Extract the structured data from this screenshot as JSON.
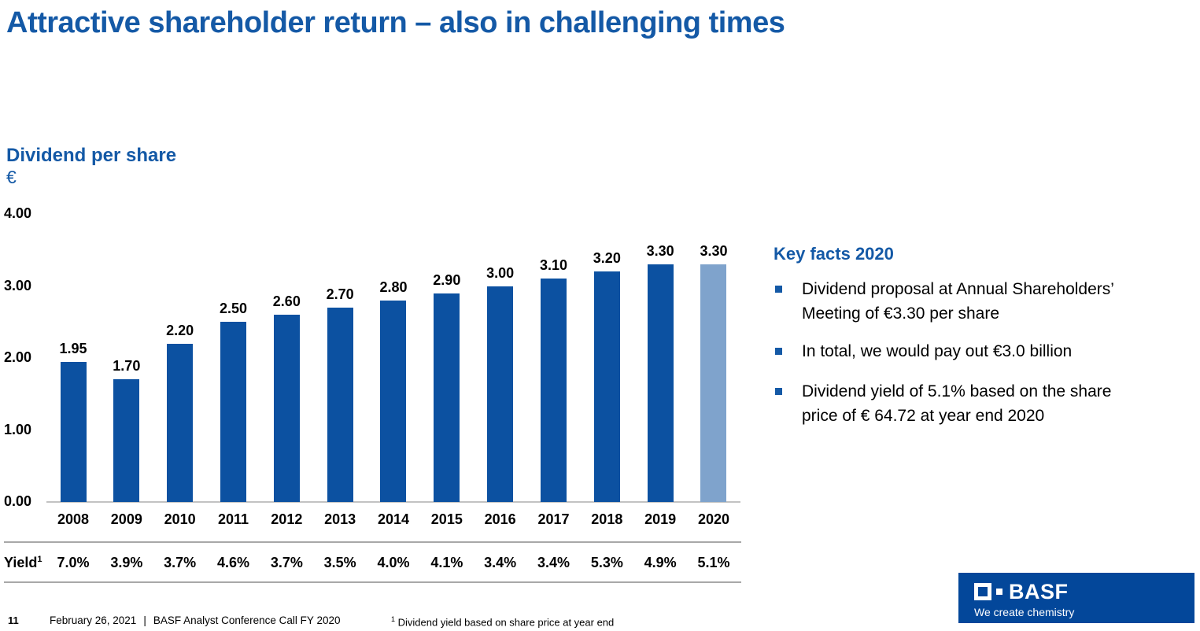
{
  "slide": {
    "title": "Attractive shareholder return – also in challenging times",
    "page_number": "11",
    "footer_date": "February 26, 2021",
    "footer_separator": "|",
    "footer_event": "BASF Analyst Conference Call FY 2020",
    "footnote_marker": "1",
    "footnote_text": "Dividend yield based on share price at year end"
  },
  "chart_header": {
    "title": "Dividend per share",
    "unit": "€"
  },
  "chart_data": {
    "type": "bar",
    "title": "Dividend per share",
    "ylabel": "€",
    "categories": [
      "2008",
      "2009",
      "2010",
      "2011",
      "2012",
      "2013",
      "2014",
      "2015",
      "2016",
      "2017",
      "2018",
      "2019",
      "2020"
    ],
    "values": [
      1.95,
      1.7,
      2.2,
      2.5,
      2.6,
      2.7,
      2.8,
      2.9,
      3.0,
      3.1,
      3.2,
      3.3,
      3.3
    ],
    "value_labels": [
      "1.95",
      "1.70",
      "2.20",
      "2.50",
      "2.60",
      "2.70",
      "2.80",
      "2.90",
      "3.00",
      "3.10",
      "3.20",
      "3.30",
      "3.30"
    ],
    "ylim": [
      0,
      4
    ],
    "yticks": [
      {
        "value": 4,
        "label": "4.00"
      },
      {
        "value": 3,
        "label": "3.00"
      },
      {
        "value": 2,
        "label": "2.00"
      },
      {
        "value": 1,
        "label": "1.00"
      },
      {
        "value": 0,
        "label": "0.00"
      }
    ],
    "grid": false,
    "legend": null,
    "highlight_index": 12,
    "colors": {
      "bar": "#0C51A1",
      "bar_highlight": "#7FA3CC"
    },
    "yield_row": {
      "label": "Yield",
      "label_superscript": "1",
      "values": [
        "7.0%",
        "3.9%",
        "3.7%",
        "4.6%",
        "3.7%",
        "3.5%",
        "4.0%",
        "4.1%",
        "3.4%",
        "3.4%",
        "5.3%",
        "4.9%",
        "5.1%"
      ]
    }
  },
  "key_facts": {
    "title": "Key facts 2020",
    "bullets": [
      {
        "lines": [
          "Dividend proposal at Annual Shareholders’",
          "Meeting of €3.30 per share"
        ]
      },
      {
        "lines": [
          "In total, we would pay out €3.0 billion"
        ]
      },
      {
        "lines": [
          "Dividend yield of 5.1% based on the share",
          "price of € 64.72 at year end 2020"
        ]
      }
    ]
  },
  "logo": {
    "brand": "BASF",
    "tagline": "We create chemistry"
  },
  "colors": {
    "heading_blue": "#1459A6",
    "bar_blue": "#0C51A1",
    "bar_highlight_blue": "#7FA3CC",
    "logo_background": "#03479A",
    "axis_gray": "#c2c2c2",
    "rule_gray": "#a8a8a8"
  }
}
